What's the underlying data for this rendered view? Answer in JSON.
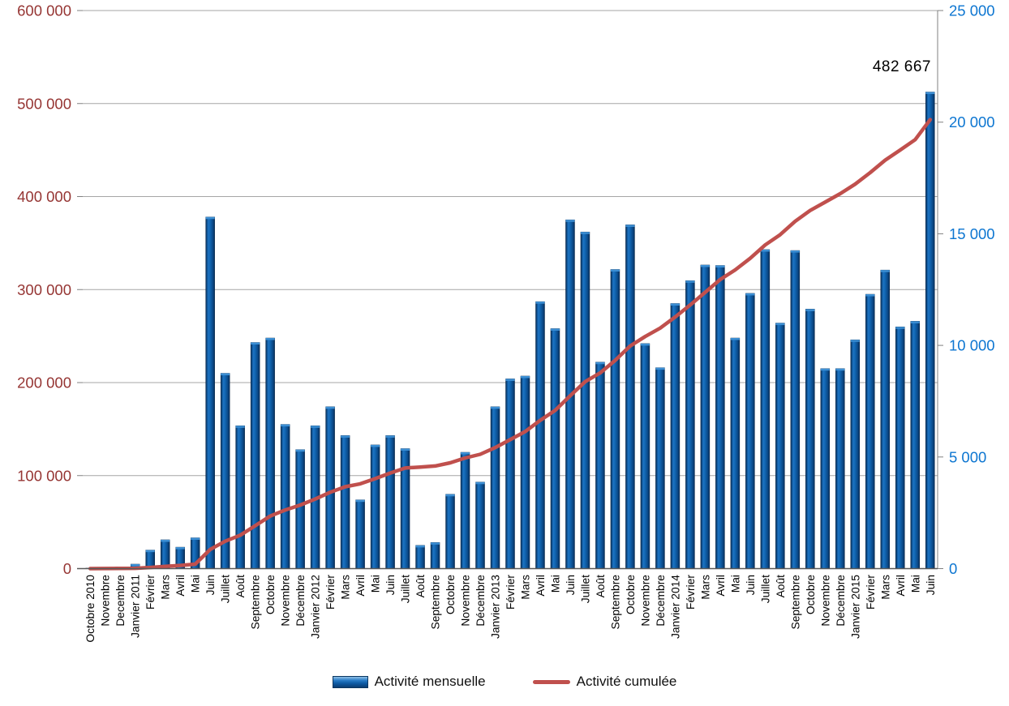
{
  "chart_data": {
    "type": "bar",
    "subtype": "bar-line-combo",
    "title": "",
    "xlabel": "",
    "ylabel_left": "",
    "ylabel_right": "",
    "grid": true,
    "legend_position": "bottom-center",
    "categories": [
      "Octobre 2010",
      "Novembre",
      "Decembre",
      "Janvier 2011",
      "Février",
      "Mars",
      "Avril",
      "Mai",
      "Juin",
      "Juillet",
      "Août",
      "Septembre",
      "Octobre",
      "Novembre",
      "Décembre",
      "Janvier 2012",
      "Février",
      "Mars",
      "Avril",
      "Mai",
      "Juin",
      "Juillet",
      "Août",
      "Septembre",
      "Octobre",
      "Novembre",
      "Décembre",
      "Janvier 2013",
      "Février",
      "Mars",
      "Avril",
      "Mai",
      "Juin",
      "Juillet",
      "Août",
      "Septembre",
      "Octobre",
      "Novembre",
      "Décembre",
      "Janvier 2014",
      "Février",
      "Mars",
      "Avril",
      "Mai",
      "Juin",
      "Juillet",
      "Août",
      "Septembre",
      "Octobre",
      "Novembre",
      "Décembre",
      "Janvier 2015",
      "Février",
      "Mars",
      "Avril",
      "Mai",
      "Juin"
    ],
    "series": [
      {
        "name": "Activité mensuelle",
        "type": "bar",
        "axis": "right",
        "color": "#1268b4",
        "values": [
          20,
          40,
          80,
          200,
          830,
          1290,
          960,
          1380,
          15750,
          8750,
          6400,
          10130,
          10330,
          6460,
          5330,
          6400,
          7250,
          5960,
          3080,
          5540,
          5960,
          5375,
          1040,
          1170,
          3330,
          5210,
          3875,
          7250,
          8500,
          8625,
          11960,
          10750,
          15625,
          15080,
          9250,
          13400,
          15400,
          10080,
          9000,
          11875,
          12900,
          13600,
          13580,
          10330,
          12330,
          14290,
          11000,
          14250,
          11625,
          8960,
          8960,
          10250,
          12290,
          13375,
          10830,
          11080,
          21350
        ]
      },
      {
        "name": "Activité cumulée",
        "type": "line",
        "axis": "left",
        "color": "#c0504d",
        "values": [
          20,
          60,
          141,
          342,
          1177,
          2474,
          3439,
          4827,
          20667,
          29467,
          35903,
          46091,
          56480,
          62976,
          68337,
          74773,
          82064,
          88058,
          91156,
          96727,
          102721,
          108127,
          109173,
          110350,
          113699,
          118938,
          122835,
          130126,
          138675,
          147349,
          159377,
          170188,
          185902,
          201068,
          210371,
          223847,
          239335,
          249472,
          258523,
          270466,
          283439,
          297117,
          310774,
          321163,
          333563,
          347934,
          358997,
          373328,
          385019,
          394030,
          403041,
          413350,
          425709,
          439161,
          450053,
          461196,
          482667
        ]
      }
    ],
    "left_axis": {
      "min": 0,
      "max": 600000,
      "step": 100000,
      "color": "#963634",
      "tick_labels": [
        "0",
        "100 000",
        "200 000",
        "300 000",
        "400 000",
        "500 000",
        "600 000"
      ]
    },
    "right_axis": {
      "min": 0,
      "max": 25000,
      "step": 5000,
      "color": "#0d76d1",
      "tick_labels": [
        "0",
        "5 000",
        "10 000",
        "15 000",
        "20 000",
        "25 000"
      ]
    },
    "annotation": {
      "text": "482 667",
      "series": "Activité cumulée",
      "point": "Juin"
    },
    "legend": [
      {
        "label": "Activité mensuelle",
        "swatch": "bar-swatch"
      },
      {
        "label": "Activité cumulée",
        "swatch": "line-swatch"
      }
    ]
  },
  "colors": {
    "bar_edge": "#07264a",
    "bar_mid": "#1268b4",
    "bar_bevel": "#3c8fd4",
    "line": "#c0504d",
    "gridline": "#a6a6a6",
    "baseline": "#595959",
    "plot_border": "#808080",
    "x_labels": "#000000",
    "annotation_text": "#000000"
  }
}
